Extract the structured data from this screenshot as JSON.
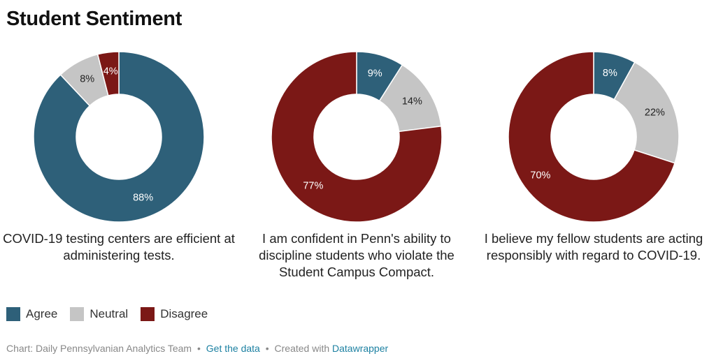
{
  "header": {
    "title": "Student Sentiment"
  },
  "colors": {
    "Agree": "#2e6079",
    "Neutral": "#c5c5c5",
    "Disagree": "#7b1816"
  },
  "chart_data": [
    {
      "type": "pie",
      "title": "COVID-19 testing centers are efficient at administering tests.",
      "categories": [
        "Agree",
        "Neutral",
        "Disagree"
      ],
      "values": [
        88,
        8,
        4
      ],
      "labels": [
        "88%",
        "8%",
        "4%"
      ]
    },
    {
      "type": "pie",
      "title": "I am confident in Penn's ability to discipline students who violate the Student Campus Compact.",
      "categories": [
        "Agree",
        "Neutral",
        "Disagree"
      ],
      "values": [
        9,
        14,
        77
      ],
      "labels": [
        "9%",
        "14%",
        "77%"
      ]
    },
    {
      "type": "pie",
      "title": "I believe my fellow students are acting responsibly with regard to COVID-19.",
      "categories": [
        "Agree",
        "Neutral",
        "Disagree"
      ],
      "values": [
        8,
        22,
        70
      ],
      "labels": [
        "8%",
        "22%",
        "70%"
      ]
    }
  ],
  "legend": {
    "items": [
      "Agree",
      "Neutral",
      "Disagree"
    ]
  },
  "footer": {
    "credit": "Chart: Daily Pennsylvanian Analytics Team",
    "separator": "•",
    "data_link": "Get the data",
    "created_with": "Created with",
    "tool_link": "Datawrapper"
  }
}
